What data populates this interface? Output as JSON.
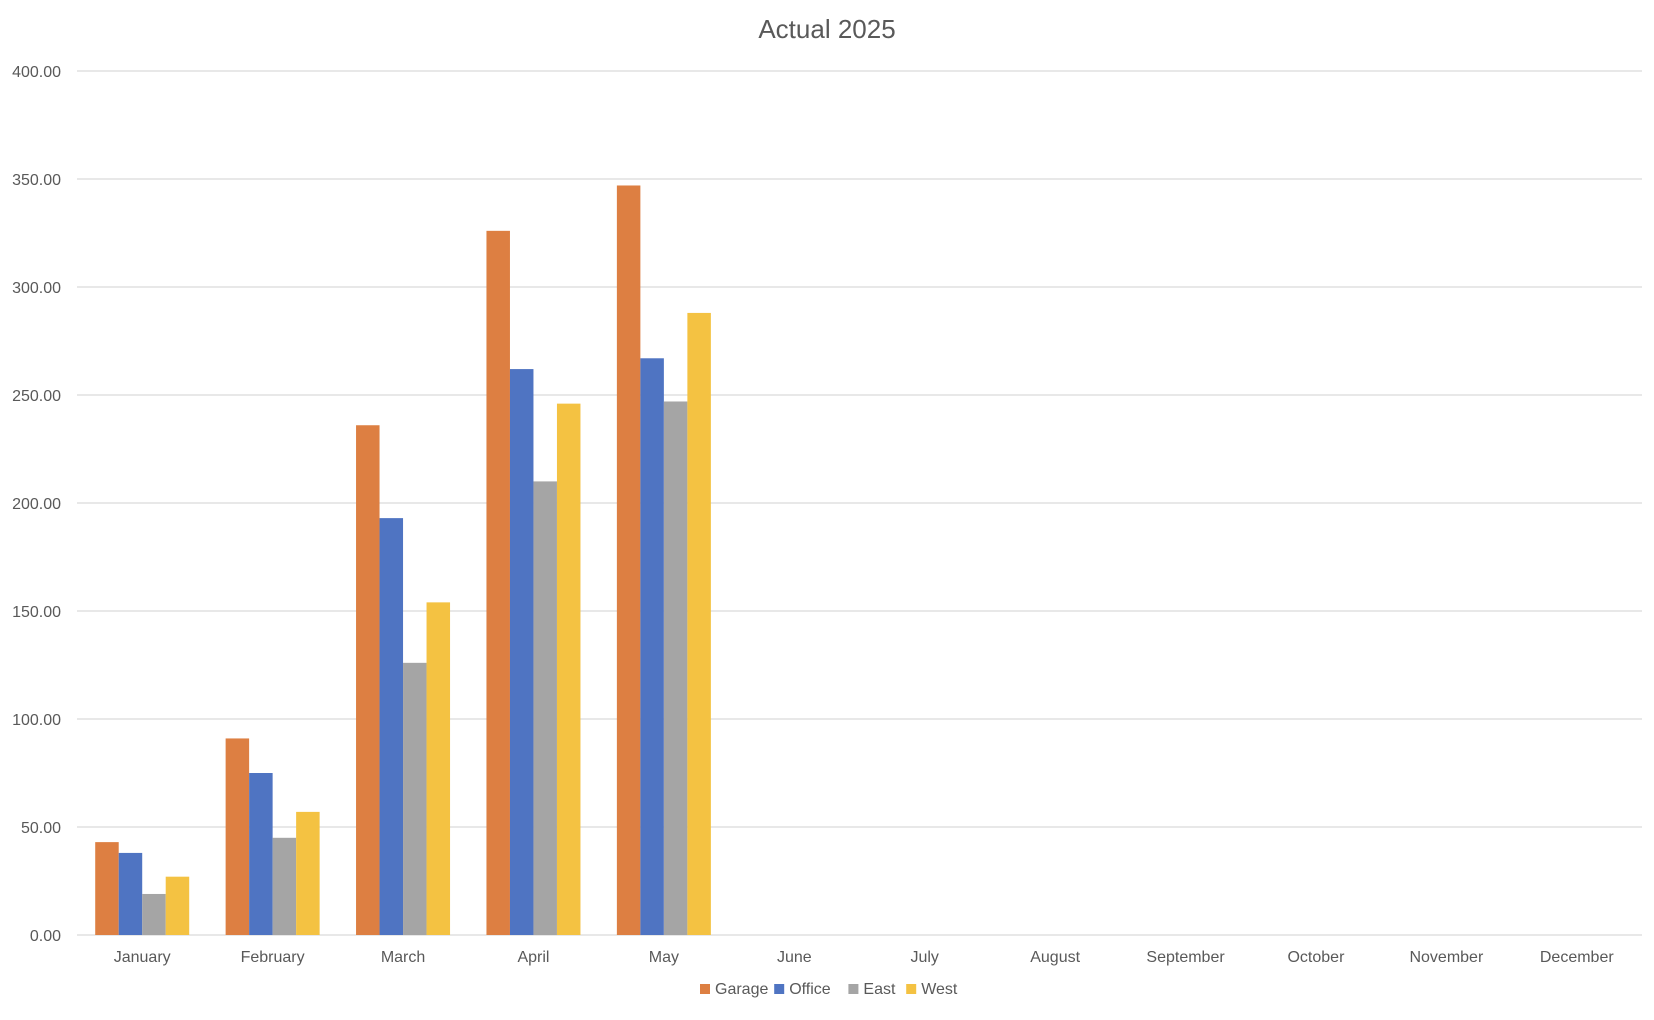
{
  "chart_data": {
    "type": "bar",
    "title": "Actual 2025",
    "xlabel": "",
    "ylabel": "",
    "categories": [
      "January",
      "February",
      "March",
      "April",
      "May",
      "June",
      "July",
      "August",
      "September",
      "October",
      "November",
      "December"
    ],
    "series": [
      {
        "name": "Garage",
        "color": "#dd7f42",
        "values": [
          43,
          91,
          236,
          326,
          347,
          null,
          null,
          null,
          null,
          null,
          null,
          null
        ]
      },
      {
        "name": "Office",
        "color": "#4f74c2",
        "values": [
          38,
          75,
          193,
          262,
          267,
          null,
          null,
          null,
          null,
          null,
          null,
          null
        ]
      },
      {
        "name": "East",
        "color": "#a5a5a5",
        "values": [
          19,
          45,
          126,
          210,
          247,
          null,
          null,
          null,
          null,
          null,
          null,
          null
        ]
      },
      {
        "name": "West",
        "color": "#f4c242",
        "values": [
          27,
          57,
          154,
          246,
          288,
          null,
          null,
          null,
          null,
          null,
          null,
          null
        ]
      }
    ],
    "ylim": [
      0,
      400
    ],
    "yticks": [
      0,
      50,
      100,
      150,
      200,
      250,
      300,
      350,
      400
    ],
    "ytick_labels": [
      "0.00",
      "50.00",
      "100.00",
      "150.00",
      "200.00",
      "250.00",
      "300.00",
      "350.00",
      "400.00"
    ],
    "grid": true,
    "legend_position": "bottom"
  }
}
